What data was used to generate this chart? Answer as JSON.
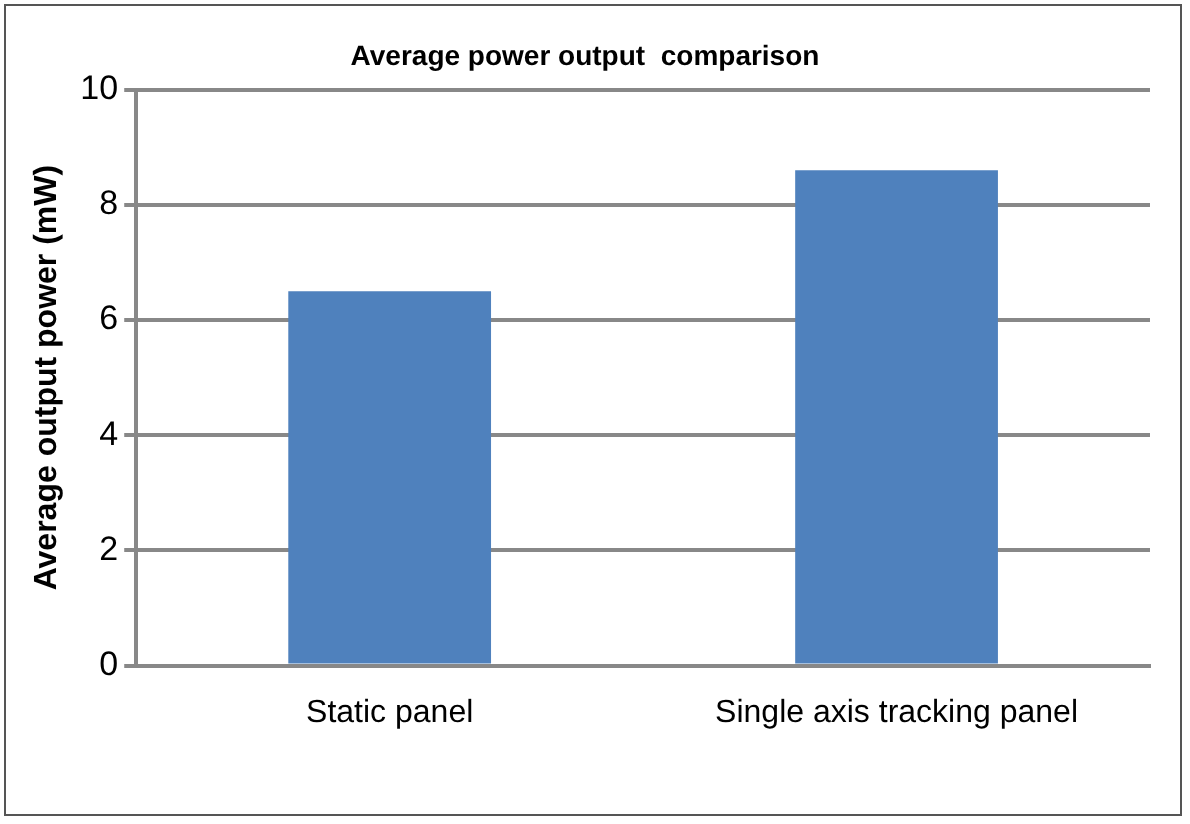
{
  "chart_data": {
    "type": "bar",
    "title": "Average power output  comparison",
    "ylabel": "Average output power (mW)",
    "categories": [
      "Static panel",
      "Single axis tracking panel"
    ],
    "series": [
      {
        "color": "#4f81bd",
        "values": [
          6.5,
          8.6
        ]
      }
    ],
    "ylim": [
      0,
      10
    ],
    "yticks": [
      0,
      2,
      4,
      6,
      8,
      10
    ],
    "grid": "y",
    "legend": false
  }
}
